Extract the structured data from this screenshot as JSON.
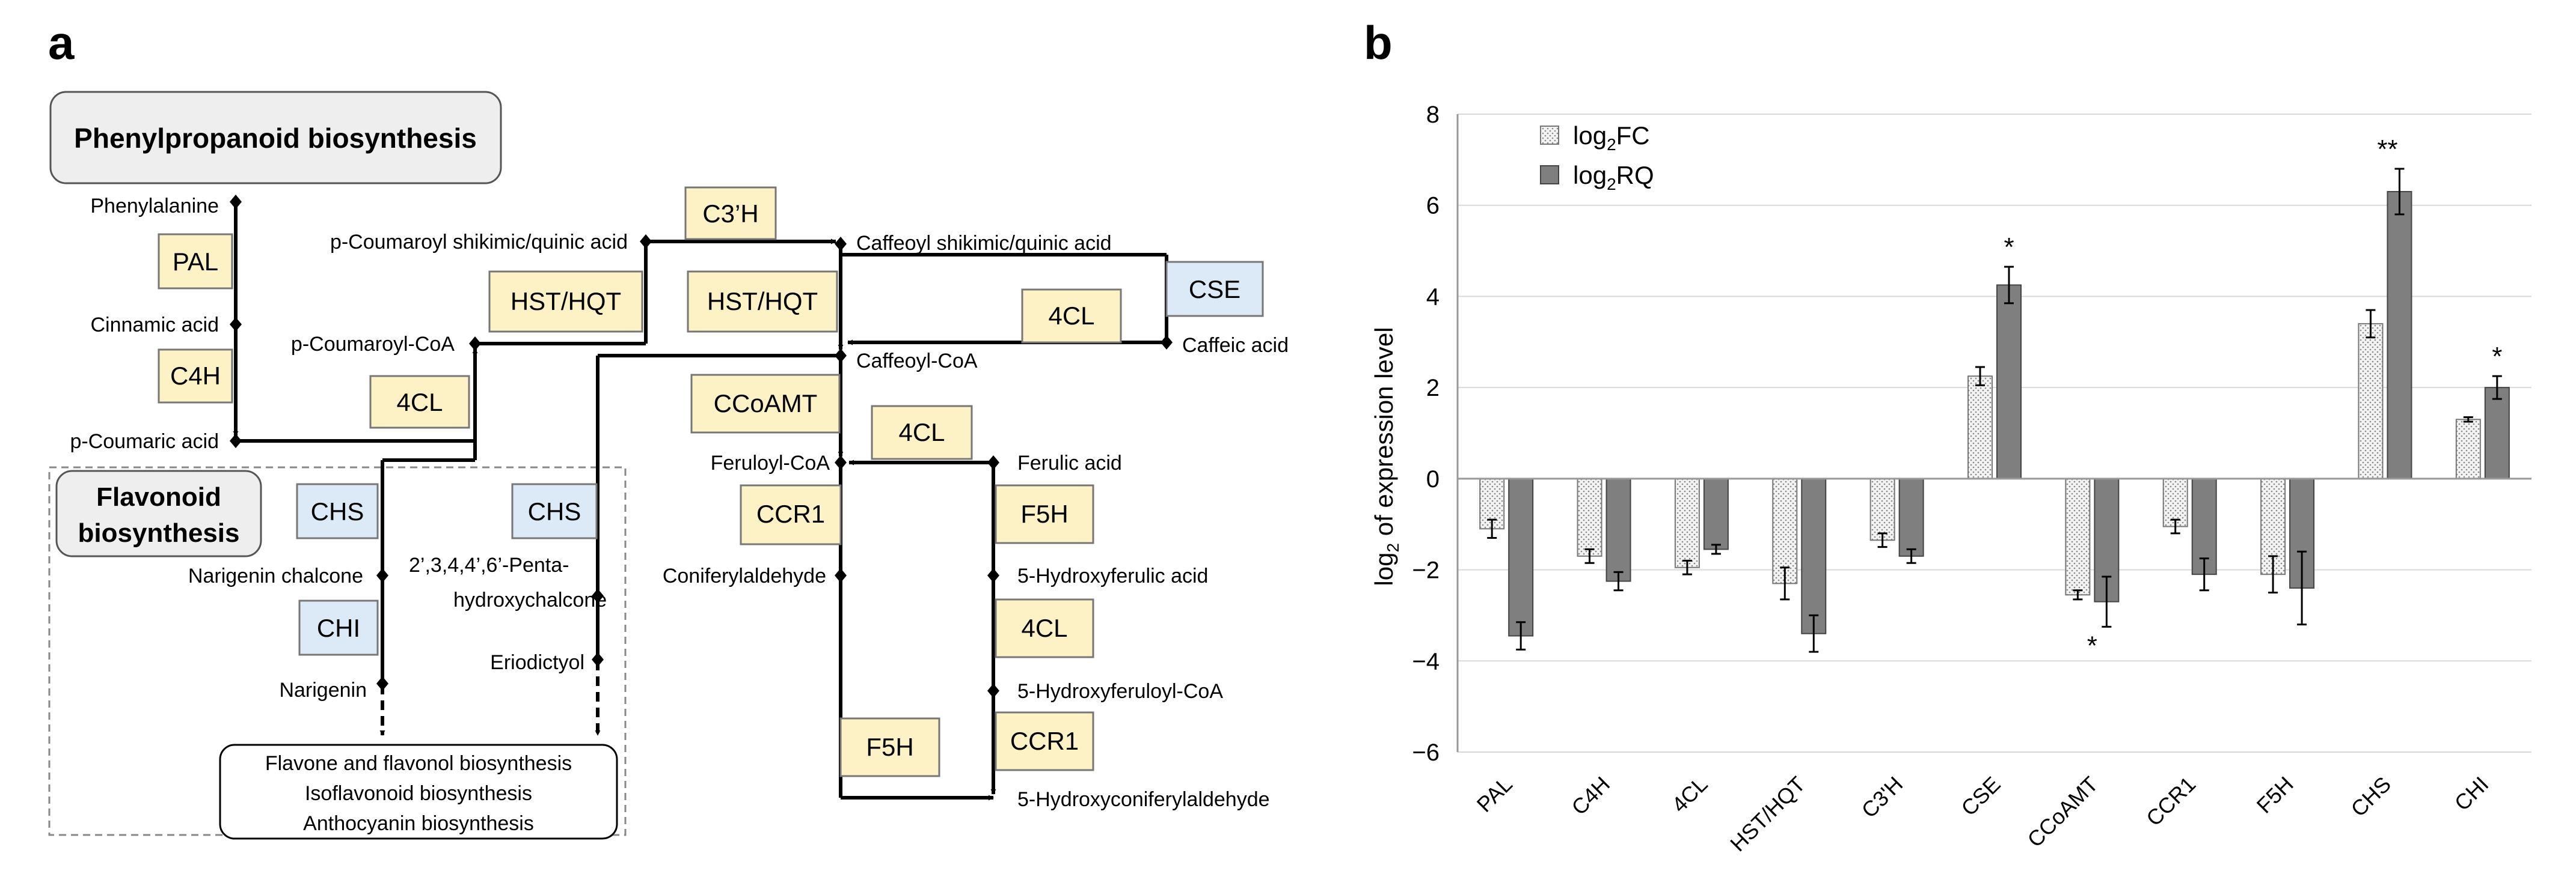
{
  "panel_a": {
    "label": "a",
    "title": "Phenylpropanoid biosynthesis",
    "flavonoid_label_lines": [
      "Flavonoid",
      "biosynthesis"
    ],
    "compounds": {
      "phenylalanine": "Phenylalanine",
      "cinnamic_acid": "Cinnamic acid",
      "p_coumaric_acid": "p-Coumaric acid",
      "p_coumaroyl_coa": "p-Coumaroyl-CoA",
      "p_coumaroyl_shikimic": "p-Coumaroyl shikimic/quinic acid",
      "caffeoyl_shikimic": "Caffeoyl shikimic/quinic acid",
      "caffeic_acid": "Caffeic acid",
      "caffeoyl_coa": "Caffeoyl-CoA",
      "feruloyl_coa": "Feruloyl-CoA",
      "ferulic_acid": "Ferulic acid",
      "coniferylaldehyde": "Coniferylaldehyde",
      "hydroxyferulic_acid": "5-Hydroxyferulic acid",
      "hydroxyferuloyl_coa": "5-Hydroxyferuloyl-CoA",
      "hydroxyconiferylaldehyde": "5-Hydroxyconiferylaldehyde",
      "narigenin_chalcone": "Narigenin chalcone",
      "narigenin": "Narigenin",
      "pentahydroxychalcone_1": "2’,3,4,4’,6’-Penta-",
      "pentahydroxychalcone_2": "hydroxychalcone",
      "eriodictyol": "Eriodictyol"
    },
    "outputs": [
      "Flavone and flavonol biosynthesis",
      "Isoflavonoid biosynthesis",
      "Anthocyanin biosynthesis"
    ],
    "enzymes": {
      "pal": "PAL",
      "c4h": "C4H",
      "fourcl_1": "4CL",
      "hst_1": "HST/HQT",
      "c3h": "C3’H",
      "hst_2": "HST/HQT",
      "fourcl_2": "4CL",
      "cse": "CSE",
      "ccoamt": "CCoAMT",
      "fourcl_3": "4CL",
      "ccr1_1": "CCR1",
      "f5h_1": "F5H",
      "fourcl_4": "4CL",
      "ccr1_2": "CCR1",
      "f5h_2": "F5H",
      "chs_1": "CHS",
      "chs_2": "CHS",
      "chi": "CHI"
    },
    "colors": {
      "yellow_enzyme": "#fdf1c6",
      "blue_enzyme": "#dbeaf6",
      "title_box": "#eeeeee"
    }
  },
  "panel_b": {
    "label": "b",
    "chart_data": {
      "type": "bar",
      "ylabel": "log",
      "ylabel_sub": "2",
      "ylabel_rest": " of expression level",
      "ylim": [
        -6,
        8
      ],
      "yticks": [
        8,
        6,
        4,
        2,
        0,
        -2,
        -4,
        -6
      ],
      "categories": [
        "PAL",
        "C4H",
        "4CL",
        "HST/HQT",
        "C3'H",
        "CSE",
        "CCoAMT",
        "CCR1",
        "F5H",
        "CHS",
        "CHI"
      ],
      "series": [
        {
          "name": "log2FC",
          "legend_main": "log",
          "legend_sub": "2",
          "legend_rest": "FC",
          "values": [
            -1.1,
            -1.7,
            -1.95,
            -2.3,
            -1.35,
            2.25,
            -2.55,
            -1.05,
            -2.1,
            3.4,
            1.3
          ],
          "errors": [
            0.2,
            0.15,
            0.15,
            0.35,
            0.15,
            0.2,
            0.1,
            0.15,
            0.4,
            0.3,
            0.05
          ]
        },
        {
          "name": "log2RQ",
          "legend_main": "log",
          "legend_sub": "2",
          "legend_rest": "RQ",
          "values": [
            -3.45,
            -2.25,
            -1.55,
            -3.4,
            -1.7,
            4.25,
            -2.7,
            -2.1,
            -2.4,
            6.3,
            2.0
          ],
          "errors": [
            0.3,
            0.2,
            0.1,
            0.4,
            0.15,
            0.4,
            0.55,
            0.35,
            0.8,
            0.5,
            0.25
          ]
        }
      ],
      "significance": [
        {
          "category": "CSE",
          "label": "*"
        },
        {
          "category": "CCoAMT",
          "label": "*"
        },
        {
          "category": "CHS",
          "label": "**"
        },
        {
          "category": "CHI",
          "label": "*"
        }
      ],
      "legend_position": "top-left",
      "grid": true
    }
  }
}
